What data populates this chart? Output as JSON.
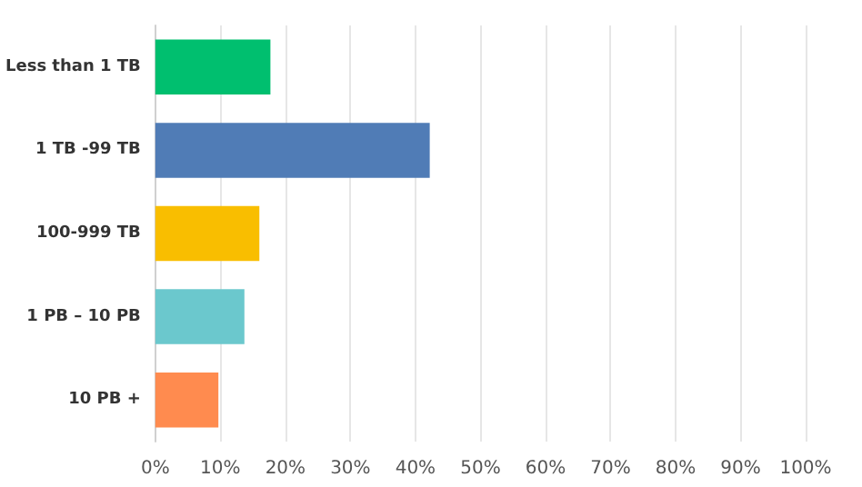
{
  "chart_data": {
    "type": "bar",
    "orientation": "horizontal",
    "categories": [
      "Less than 1 TB",
      "1 TB -99 TB",
      "100-999 TB",
      "1 PB – 10 PB",
      "10 PB +"
    ],
    "values": [
      17.7,
      42.2,
      16.0,
      13.7,
      9.7
    ],
    "colors": [
      "#00bf6f",
      "#507cb6",
      "#f9be00",
      "#6bc8cd",
      "#ff8b4f"
    ],
    "xlim": [
      0,
      100
    ],
    "xticks": [
      {
        "value": 0,
        "label": "0%"
      },
      {
        "value": 10,
        "label": "10%"
      },
      {
        "value": 20,
        "label": "20%"
      },
      {
        "value": 30,
        "label": "30%"
      },
      {
        "value": 40,
        "label": "40%"
      },
      {
        "value": 50,
        "label": "50%"
      },
      {
        "value": 60,
        "label": "60%"
      },
      {
        "value": 70,
        "label": "70%"
      },
      {
        "value": 80,
        "label": "80%"
      },
      {
        "value": 90,
        "label": "90%"
      },
      {
        "value": 100,
        "label": "100%"
      }
    ],
    "grid": "x"
  }
}
